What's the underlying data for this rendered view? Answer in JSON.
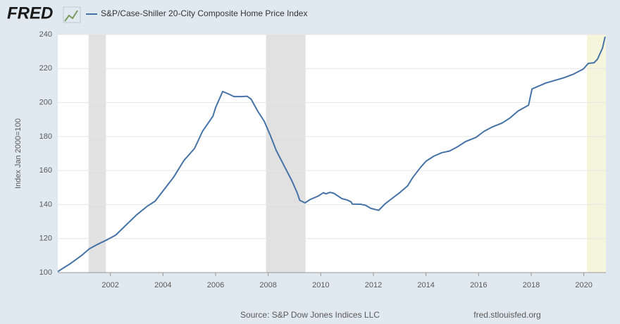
{
  "logo": "FRED",
  "chart_data": {
    "type": "line",
    "y_label": "Index Jan 2000=100",
    "source": "Source: S&P Dow Jones Indices LLC",
    "site": "fred.stlouisfed.org",
    "x": [
      2000.0,
      2000.5,
      2000.9,
      2001.2,
      2001.5,
      2001.9,
      2002.2,
      2002.6,
      2003.0,
      2003.4,
      2003.7,
      2004.0,
      2004.4,
      2004.8,
      2005.2,
      2005.5,
      2005.9,
      2006.0,
      2006.27,
      2006.5,
      2006.7,
      2007.0,
      2007.2,
      2007.35,
      2007.6,
      2007.85,
      2008.1,
      2008.3,
      2008.6,
      2008.9,
      2009.1,
      2009.2,
      2009.4,
      2009.6,
      2009.9,
      2010.1,
      2010.2,
      2010.35,
      2010.5,
      2010.8,
      2011.0,
      2011.15,
      2011.2,
      2011.5,
      2011.7,
      2011.9,
      2012.1,
      2012.2,
      2012.45,
      2012.7,
      2013.0,
      2013.3,
      2013.5,
      2013.8,
      2014.0,
      2014.3,
      2014.6,
      2014.9,
      2015.2,
      2015.5,
      2015.9,
      2016.2,
      2016.5,
      2016.9,
      2017.2,
      2017.5,
      2017.9,
      2018.03,
      2018.56,
      2019.23,
      2019.58,
      2019.98,
      2020.17,
      2020.39,
      2020.52,
      2020.71,
      2020.81
    ],
    "series": [
      {
        "name": "S&P/Case-Shiller 20-City Composite Home Price Index",
        "color": "#4572a7",
        "values": [
          100.6,
          105.5,
          110,
          114,
          116.5,
          119.5,
          122,
          128,
          134,
          139,
          142,
          148,
          156,
          166,
          173,
          183,
          192,
          197,
          206.5,
          205,
          203.5,
          203.5,
          203.7,
          202,
          195,
          189,
          180,
          172,
          163,
          154,
          147,
          142.5,
          141,
          143,
          145,
          147,
          146.3,
          147.2,
          146.6,
          143.5,
          142.7,
          141.6,
          140.3,
          140.2,
          139.6,
          137.8,
          137,
          136.6,
          140.5,
          143.5,
          147,
          151,
          156,
          162,
          165.5,
          168.5,
          170.5,
          171.5,
          174,
          177,
          179.5,
          183,
          185.5,
          188,
          191,
          195,
          198.5,
          208,
          211.5,
          214.5,
          216.5,
          219.7,
          223,
          223.4,
          225.5,
          232,
          238.7
        ]
      }
    ],
    "shaded_ranges": [
      {
        "start": 2001.17,
        "end": 2001.83,
        "color": "#e1e1e1"
      },
      {
        "start": 2007.92,
        "end": 2009.42,
        "color": "#e1e1e1"
      },
      {
        "start": 2020.12,
        "end": 2020.84,
        "color": "#f5f5dc"
      }
    ],
    "xlim": [
      2000.0,
      2020.84
    ],
    "xticks": [
      2002,
      2004,
      2006,
      2008,
      2010,
      2012,
      2014,
      2016,
      2018,
      2020
    ],
    "ylim": [
      100,
      240
    ],
    "yticks": [
      100,
      120,
      140,
      160,
      180,
      200,
      220,
      240
    ],
    "grid": true
  }
}
